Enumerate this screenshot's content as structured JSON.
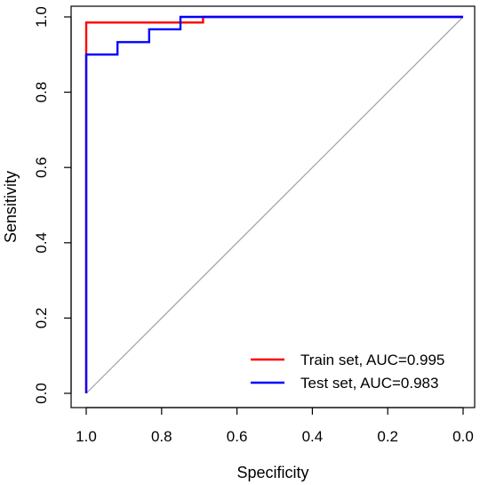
{
  "chart_data": {
    "type": "line",
    "title": "",
    "xlabel": "Specificity",
    "ylabel": "Sensitivity",
    "xlim": [
      1.0,
      0.0
    ],
    "ylim": [
      0.0,
      1.0
    ],
    "x_reversed": true,
    "x_ticks": [
      "1.0",
      "0.8",
      "0.6",
      "0.4",
      "0.2",
      "0.0"
    ],
    "y_ticks": [
      "0.0",
      "0.2",
      "0.4",
      "0.6",
      "0.8",
      "1.0"
    ],
    "grid": false,
    "legend_position": "bottom-right",
    "reference_line": {
      "from": [
        1.0,
        0.0
      ],
      "to": [
        0.0,
        1.0
      ],
      "color": "#a0a0a0"
    },
    "series": [
      {
        "name": "Train set, AUC=0.995",
        "color": "#ff0000",
        "points": [
          [
            1.0,
            0.0
          ],
          [
            1.0,
            0.985
          ],
          [
            0.69,
            0.985
          ],
          [
            0.69,
            1.0
          ],
          [
            0.0,
            1.0
          ]
        ]
      },
      {
        "name": "Test set, AUC=0.983",
        "color": "#0000ff",
        "points": [
          [
            1.0,
            0.0
          ],
          [
            1.0,
            0.9
          ],
          [
            0.917,
            0.9
          ],
          [
            0.917,
            0.933
          ],
          [
            0.833,
            0.933
          ],
          [
            0.833,
            0.967
          ],
          [
            0.75,
            0.967
          ],
          [
            0.75,
            1.0
          ],
          [
            0.0,
            1.0
          ]
        ]
      }
    ]
  }
}
